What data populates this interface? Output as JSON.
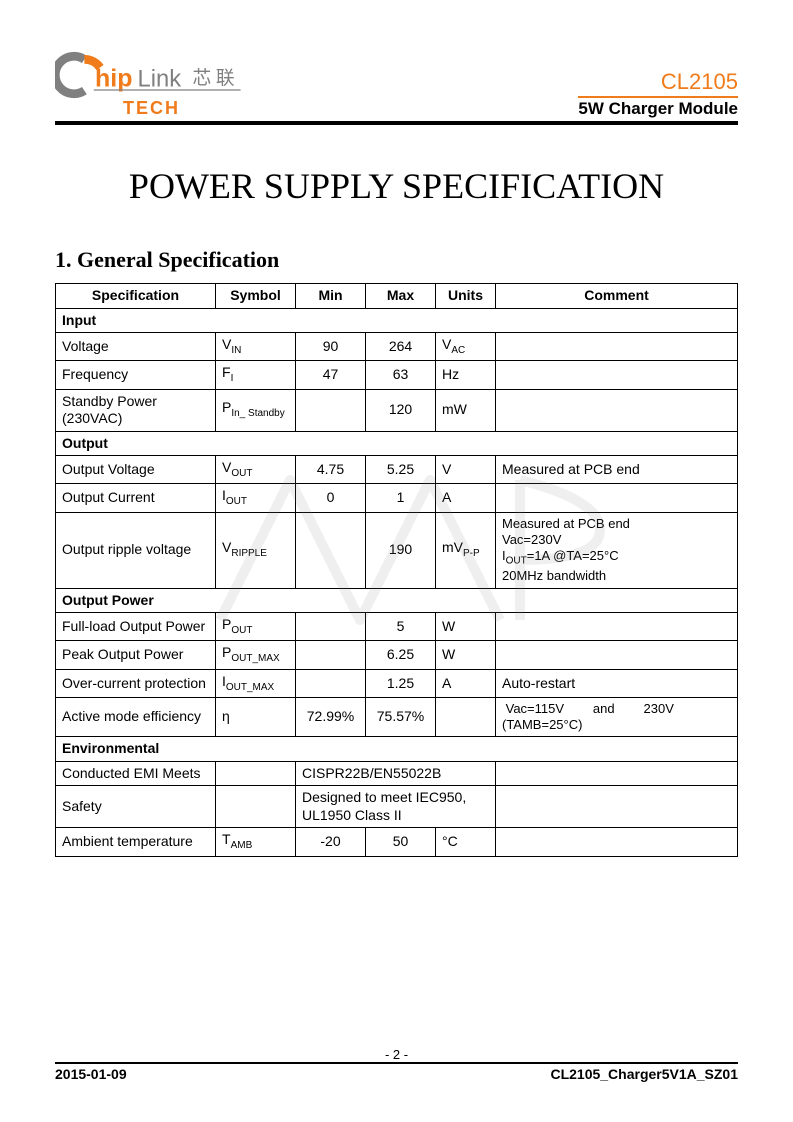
{
  "header": {
    "logo_text_hip": "hip",
    "logo_text_link": "Link",
    "logo_text_cn": "芯 联",
    "logo_tech": "TECH",
    "part_number": "CL2105",
    "module_name": "5W Charger Module",
    "colors": {
      "accent": "#f07b1a",
      "gray": "#808080",
      "black": "#000000"
    }
  },
  "title": "POWER SUPPLY SPECIFICATION",
  "section": "1.  General Specification",
  "table": {
    "headers": [
      "Specification",
      "Symbol",
      "Min",
      "Max",
      "Units",
      "Comment"
    ],
    "groups": [
      {
        "name": "Input",
        "rows": [
          {
            "spec": "Voltage",
            "sym": "V",
            "sym_sub": "IN",
            "min": "90",
            "max": "264",
            "units": "V",
            "units_sub": "AC",
            "comment": ""
          },
          {
            "spec": "Frequency",
            "sym": "F",
            "sym_sub": "I",
            "min": "47",
            "max": "63",
            "units": "Hz",
            "comment": ""
          },
          {
            "spec": "Standby Power (230VAC)",
            "sym": "P",
            "sym_sub": "In_ Standby",
            "min": "",
            "max": "120",
            "units": "mW",
            "comment": ""
          }
        ]
      },
      {
        "name": "Output",
        "rows": [
          {
            "spec": "Output Voltage",
            "sym": "V",
            "sym_sub": "OUT",
            "min": "4.75",
            "max": "5.25",
            "units": "V",
            "comment": "Measured at PCB end"
          },
          {
            "spec": "Output Current",
            "sym": "I",
            "sym_sub": "OUT",
            "min": "0",
            "max": "1",
            "units": "A",
            "comment": ""
          },
          {
            "spec": "Output ripple voltage",
            "sym": "V",
            "sym_sub": "RIPPLE",
            "min": "",
            "max": "190",
            "units": "mV",
            "units_sub": "P-P",
            "comment_html": "Measured at PCB end<br>Vac=230V<br>I<span class='sub'>OUT</span>=1A @TA=25°C<br>20MHz bandwidth"
          }
        ]
      },
      {
        "name": "Output Power",
        "rows": [
          {
            "spec": "Full-load Output Power",
            "sym": "P",
            "sym_sub": "OUT",
            "min": "",
            "max": "5",
            "units": "W",
            "comment": ""
          },
          {
            "spec": "Peak Output Power",
            "sym": "P",
            "sym_sub": "OUT_MAX",
            "min": "",
            "max": "6.25",
            "units": "W",
            "comment": ""
          },
          {
            "spec": "Over-current protection",
            "sym": "I",
            "sym_sub": "OUT_MAX",
            "min": "",
            "max": "1.25",
            "units": "A",
            "comment": "Auto-restart"
          },
          {
            "spec": "Active mode efficiency",
            "sym_plain": "η",
            "min": "72.99%",
            "max": "75.57%",
            "units": "",
            "comment_html": "&nbsp;Vac=115V&nbsp;&nbsp;&nbsp;&nbsp;&nbsp;&nbsp;&nbsp;&nbsp;and&nbsp;&nbsp;&nbsp;&nbsp;&nbsp;&nbsp;&nbsp;&nbsp;230V<br>(TAMB=25°C)"
          }
        ]
      },
      {
        "name": "Environmental",
        "rows": [
          {
            "spec": "Conducted EMI Meets",
            "sym_plain": "",
            "merged_text": "CISPR22B/EN55022B"
          },
          {
            "spec": "Safety",
            "sym_plain": "",
            "merged_text": "Designed to meet IEC950, UL1950 Class II"
          },
          {
            "spec": "Ambient temperature",
            "sym": "T",
            "sym_sub": "AMB",
            "min": "-20",
            "max": "50",
            "units": "°C",
            "comment": ""
          }
        ]
      }
    ]
  },
  "page_number": "- 2 -",
  "footer": {
    "date": "2015-01-09",
    "doc_id": "CL2105_Charger5V1A_SZ01"
  }
}
